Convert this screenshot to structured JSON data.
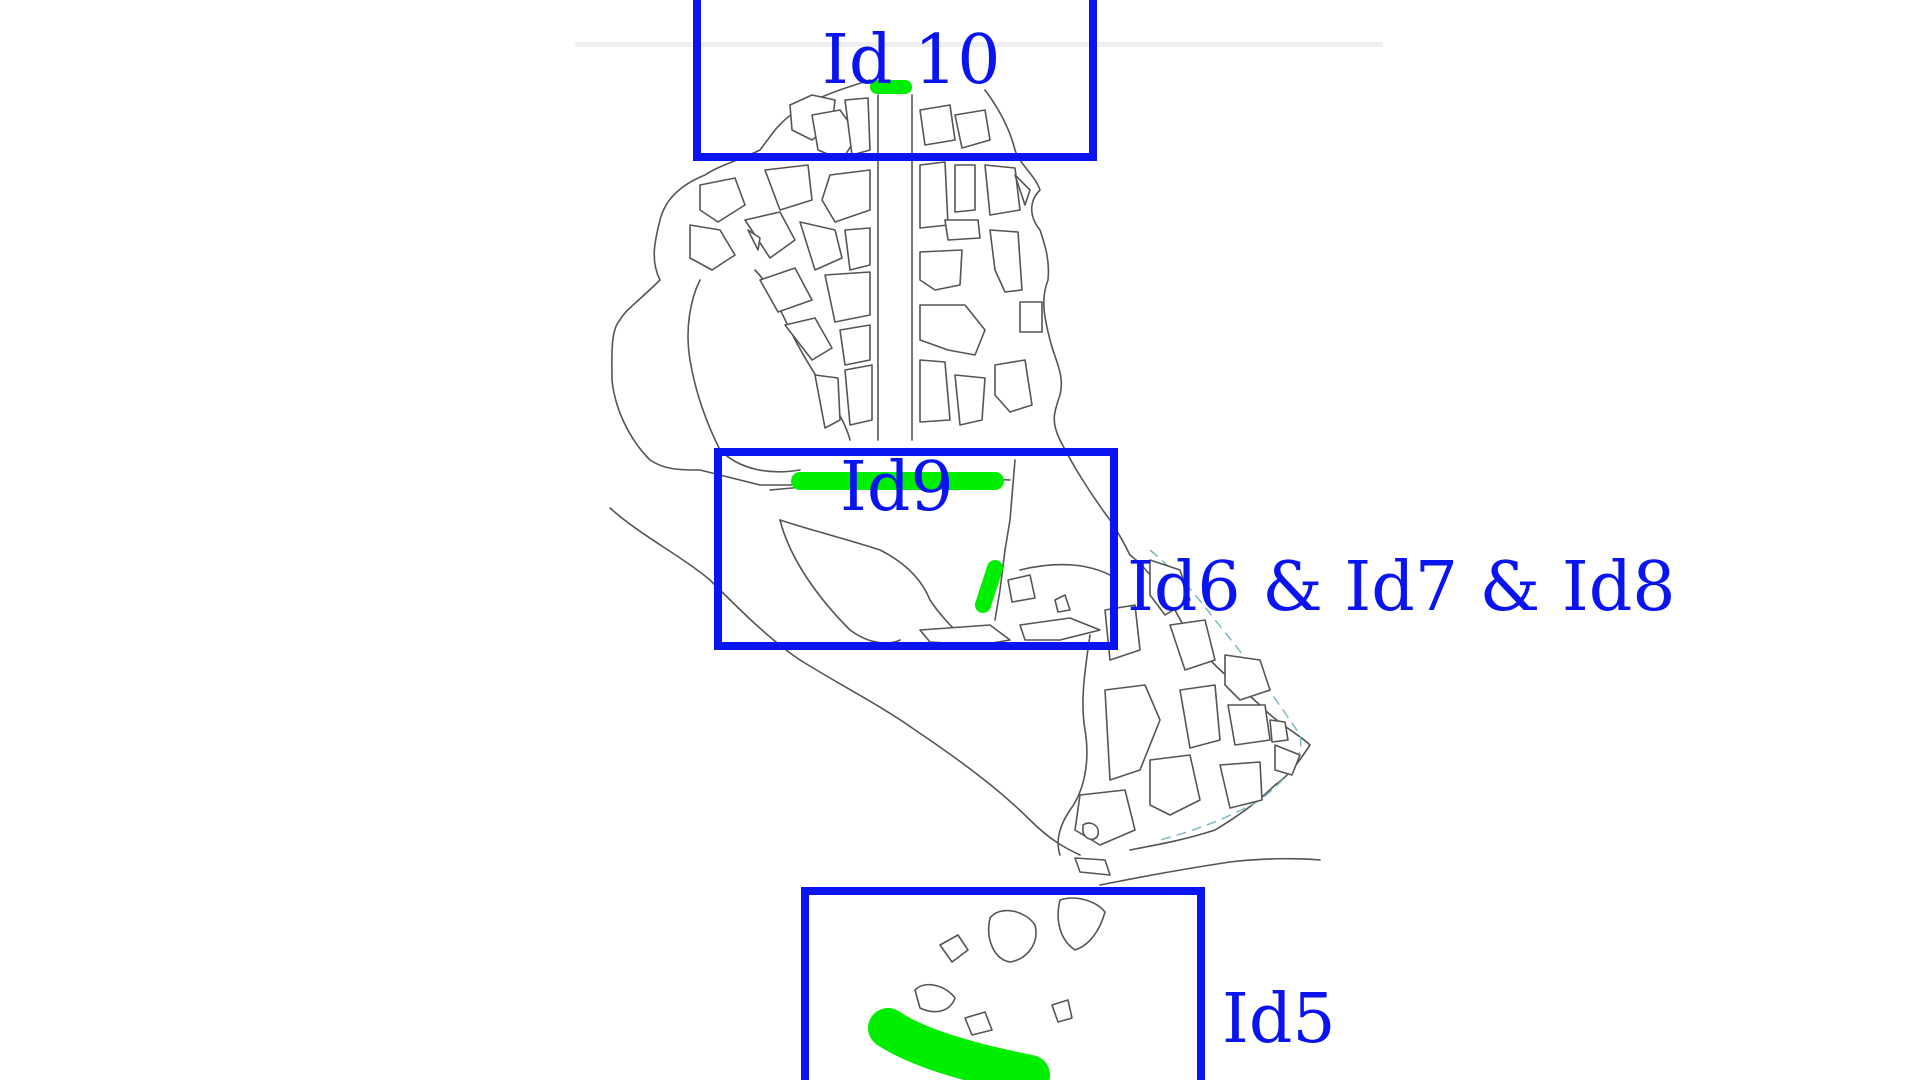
{
  "colors": {
    "annotation": "#0a14f0",
    "highlight": "#00ee00",
    "outline": "#555555",
    "coast_dashed": "#7fb8c0",
    "background": "#ffffff"
  },
  "annotations": [
    {
      "id": "id10",
      "label": "Id 10"
    },
    {
      "id": "id9",
      "label": "Id9"
    },
    {
      "id": "id678",
      "label": "Id6 & Id7 & Id8"
    },
    {
      "id": "id5",
      "label": "Id5"
    }
  ]
}
